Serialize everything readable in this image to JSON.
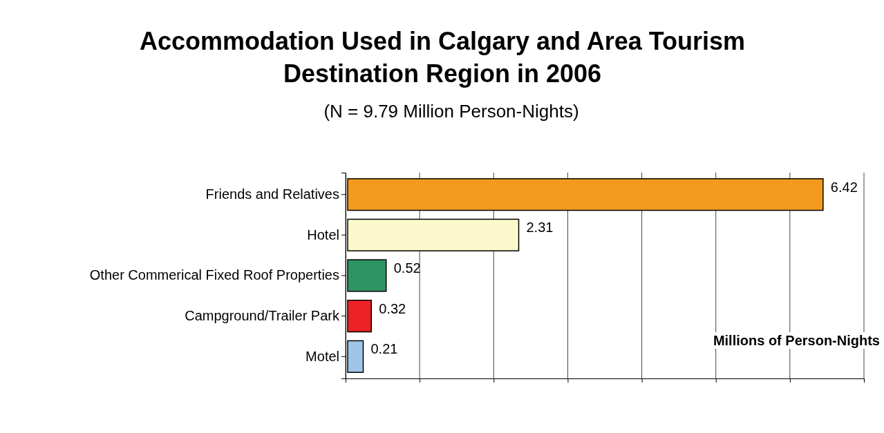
{
  "chart_data": {
    "type": "bar",
    "orientation": "horizontal",
    "title": "Accommodation Used in Calgary and Area Tourism Destination Region in 2006",
    "subtitle": "(N = 9.79 Million Person-Nights)",
    "xlabel": "Millions of Person-Nights",
    "categories": [
      "Friends and Relatives",
      "Hotel",
      "Other Commerical Fixed Roof Properties",
      "Campground/Trailer Park",
      "Motel"
    ],
    "values": [
      6.42,
      2.31,
      0.52,
      0.32,
      0.21
    ],
    "colors": [
      "#f39a1e",
      "#fbf8cc",
      "#2e9462",
      "#ec2227",
      "#9fc5e8"
    ],
    "xlim": [
      0,
      7
    ],
    "xticks": [
      {
        "value": 0,
        "label": null
      },
      {
        "value": 1,
        "label": null
      },
      {
        "value": 2,
        "label": null
      },
      {
        "value": 3,
        "label": null
      },
      {
        "value": 4,
        "label": null
      },
      {
        "value": 5,
        "label": null
      },
      {
        "value": 6,
        "label": null
      },
      {
        "value": 7,
        "label": null
      }
    ],
    "tick_labels": "y",
    "grid": "x",
    "data_labels": true
  }
}
